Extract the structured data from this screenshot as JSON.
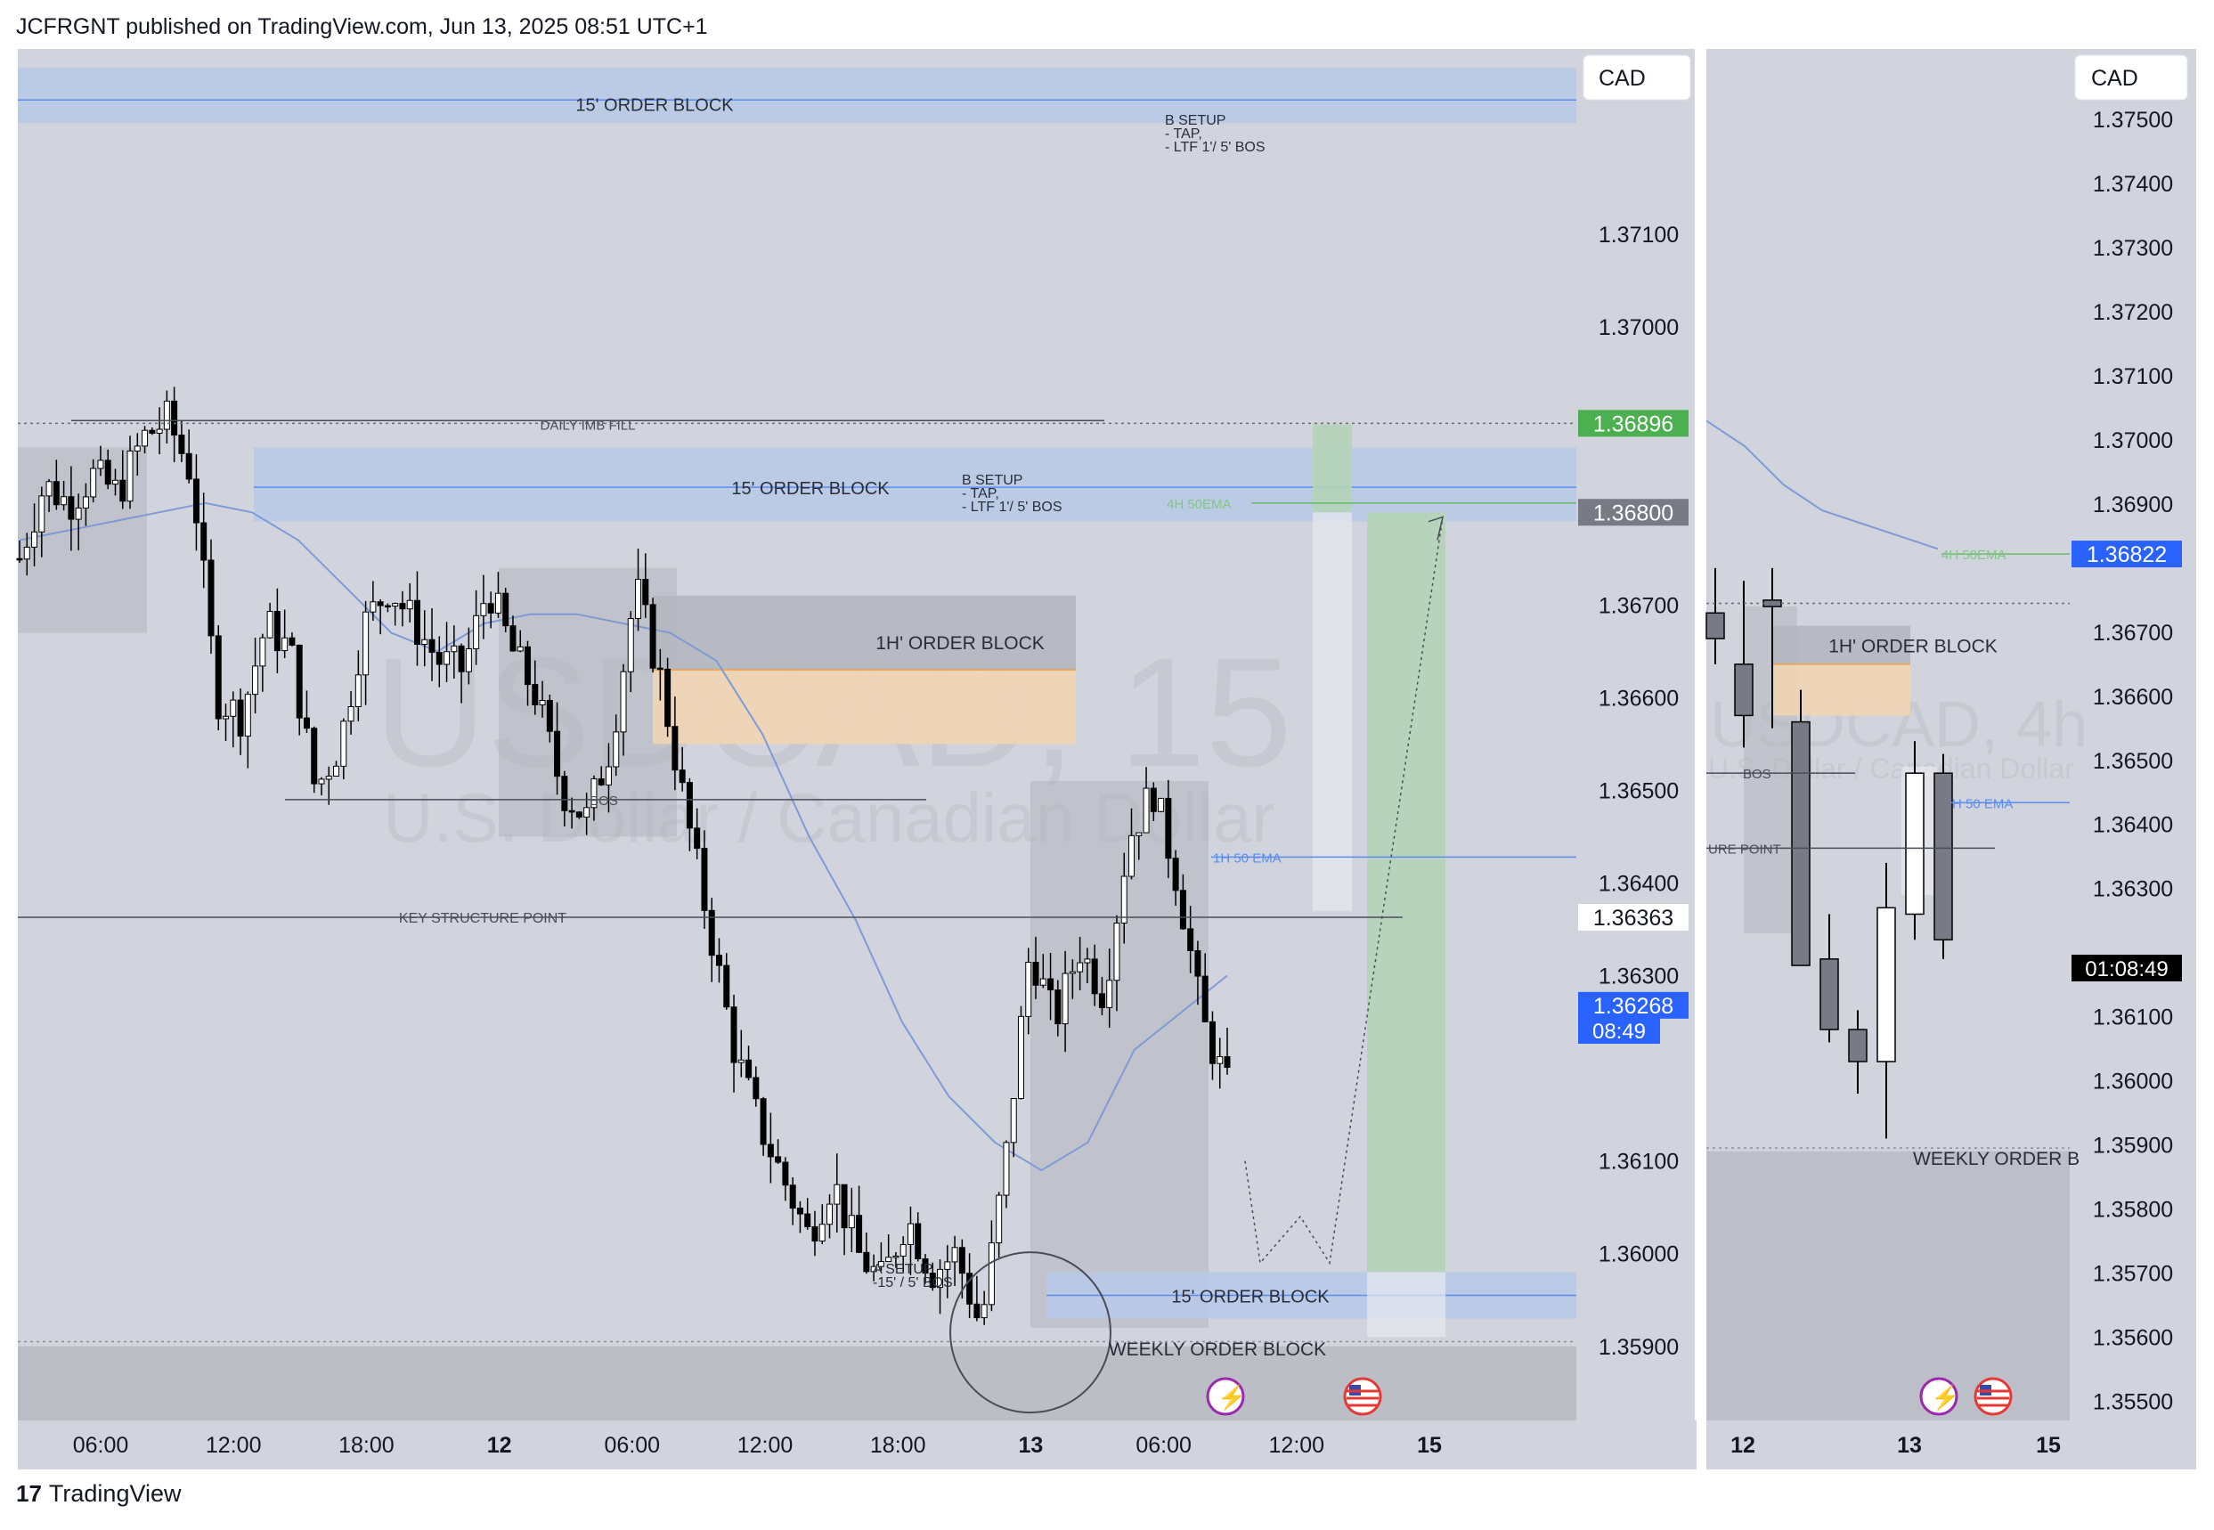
{
  "header": {
    "published": "JCFRGNT published on TradingView.com, Jun 13, 2025 08:51 UTC+1"
  },
  "footer": {
    "logo_mark": "17",
    "brand": "TradingView"
  },
  "colors": {
    "bg": "#d1d4dc",
    "axis_bg": "#ffffff",
    "ema": "#7d9bd6",
    "ob_blue": "#b7c9e8",
    "ob_grey": "#b4b7bf",
    "ob_orange": "#f2d5b4",
    "green_zone": "#b5d3b8",
    "price_blue": "#2962ff",
    "price_green": "#4caf50"
  },
  "chart_data": [
    {
      "type": "candlestick",
      "title": "",
      "watermark": {
        "symbol": "USDCAD, 15",
        "description": "U.S. Dollar / Canadian Dollar"
      },
      "currency": "CAD",
      "ylim": [
        1.3582,
        1.373
      ],
      "yticks": [
        1.371,
        1.37,
        1.367,
        1.366,
        1.365,
        1.364,
        1.363,
        1.361,
        1.36,
        1.359
      ],
      "ytick_labels": [
        "1.37100",
        "1.37000",
        "1.36700",
        "1.36600",
        "1.36500",
        "1.36400",
        "1.36300",
        "1.36100",
        "1.36000",
        "1.35900"
      ],
      "xtick_labels": [
        "06:00",
        "12:00",
        "18:00",
        "12",
        "06:00",
        "12:00",
        "18:00",
        "13",
        "06:00",
        "12:00",
        "15"
      ],
      "x_hours_per_tick": 6,
      "price_path": [
        1.3675,
        1.3683,
        1.3681,
        1.3684,
        1.3682,
        1.3688,
        1.369,
        1.3684,
        1.366,
        1.3658,
        1.3668,
        1.3665,
        1.365,
        1.3655,
        1.3668,
        1.3672,
        1.3668,
        1.3664,
        1.3663,
        1.3672,
        1.3665,
        1.366,
        1.365,
        1.3647,
        1.3655,
        1.3672,
        1.3662,
        1.3648,
        1.3635,
        1.3622,
        1.3614,
        1.3608,
        1.3602,
        1.3608,
        1.36,
        1.3597,
        1.3604,
        1.3598,
        1.36,
        1.3592,
        1.361,
        1.3633,
        1.3625,
        1.3633,
        1.3628,
        1.3645,
        1.365,
        1.364,
        1.3625,
        1.3618
      ],
      "ema_path": [
        1.3677,
        1.3678,
        1.3679,
        1.368,
        1.3681,
        1.368,
        1.3677,
        1.3672,
        1.3667,
        1.3665,
        1.3668,
        1.3669,
        1.3669,
        1.3668,
        1.3667,
        1.3664,
        1.3656,
        1.3645,
        1.3636,
        1.3625,
        1.3617,
        1.3612,
        1.3609,
        1.3612,
        1.3622,
        1.3626,
        1.363
      ],
      "price_labels": [
        {
          "price": 1.36896,
          "text": "1.36896",
          "style": "green"
        },
        {
          "price": 1.368,
          "text": "1.36800",
          "style": "grey"
        },
        {
          "price": 1.36363,
          "text": "1.36363",
          "style": "white"
        },
        {
          "price": 1.36268,
          "text": "1.36268",
          "style": "blue"
        }
      ],
      "countdown": "08:49",
      "annotations": {
        "ob_top": "15' ORDER BLOCK",
        "b_setup_top": [
          "B SETUP",
          "- TAP,",
          "- LTF 1'/ 5' BOS"
        ],
        "daily_imb": "DAILY IMB FILL",
        "ob_mid": "15' ORDER BLOCK",
        "ema_4h": "4H 50EMA",
        "b_setup_mid": [
          "B SETUP",
          "- TAP,",
          "- LTF 1'/ 5' BOS"
        ],
        "ob_1h": "1H' ORDER BLOCK",
        "bos": "BOS",
        "ema_1h": "1H 50 EMA",
        "key_structure": "KEY STRUCTURE POINT",
        "a_setup": [
          "A SETUP",
          "-15' / 5' BOS"
        ],
        "ob_low": "15' ORDER BLOCK",
        "weekly_ob": "WEEKLY ORDER BLOCK"
      }
    },
    {
      "type": "candlestick",
      "title": "",
      "watermark": {
        "symbol": "USDCAD, 4h",
        "description": "U.S. Dollar / Canadian Dollar"
      },
      "currency": "CAD",
      "ylim": [
        1.3547,
        1.3761
      ],
      "ytick_labels": [
        "1.37500",
        "1.37400",
        "1.37300",
        "1.37200",
        "1.37100",
        "1.37000",
        "1.36900",
        "1.36700",
        "1.36600",
        "1.36500",
        "1.36400",
        "1.36300",
        "1.36100",
        "1.36000",
        "1.35900",
        "1.35800",
        "1.35700",
        "1.35600",
        "1.35500"
      ],
      "yticks": [
        1.375,
        1.374,
        1.373,
        1.372,
        1.371,
        1.37,
        1.369,
        1.367,
        1.366,
        1.365,
        1.364,
        1.363,
        1.361,
        1.36,
        1.359,
        1.358,
        1.357,
        1.356,
        1.355
      ],
      "xtick_labels": [
        "12",
        "13",
        "15"
      ],
      "candles": [
        {
          "o": 1.3673,
          "h": 1.368,
          "l": 1.3665,
          "c": 1.3669,
          "bull": false
        },
        {
          "o": 1.3665,
          "h": 1.3678,
          "l": 1.3652,
          "c": 1.3657,
          "bull": false
        },
        {
          "o": 1.3674,
          "h": 1.368,
          "l": 1.3655,
          "c": 1.3675,
          "bull": false
        },
        {
          "o": 1.3656,
          "h": 1.3661,
          "l": 1.3618,
          "c": 1.3618,
          "bull": false
        },
        {
          "o": 1.3619,
          "h": 1.3626,
          "l": 1.3606,
          "c": 1.3608,
          "bull": false
        },
        {
          "o": 1.3608,
          "h": 1.3611,
          "l": 1.3598,
          "c": 1.3603,
          "bull": false
        },
        {
          "o": 1.3603,
          "h": 1.3634,
          "l": 1.3591,
          "c": 1.3627,
          "bull": true
        },
        {
          "o": 1.3626,
          "h": 1.3653,
          "l": 1.3622,
          "c": 1.3648,
          "bull": true
        },
        {
          "o": 1.3648,
          "h": 1.3651,
          "l": 1.3619,
          "c": 1.3622,
          "bull": false
        }
      ],
      "ema_path": [
        1.3703,
        1.3699,
        1.3693,
        1.3689,
        1.3687,
        1.3685,
        1.3683
      ],
      "price_labels": [
        {
          "price": 1.36822,
          "text": "1.36822",
          "style": "blue"
        }
      ],
      "countdown": "01:08:49",
      "annotations": {
        "ema_4h": "4H 50EMA",
        "ob_1h": "1H' ORDER BLOCK",
        "bos": "BOS",
        "key_structure": "URE POINT",
        "ema_1h": "H 50 EMA",
        "weekly_ob": "WEEKLY ORDER B"
      }
    }
  ]
}
